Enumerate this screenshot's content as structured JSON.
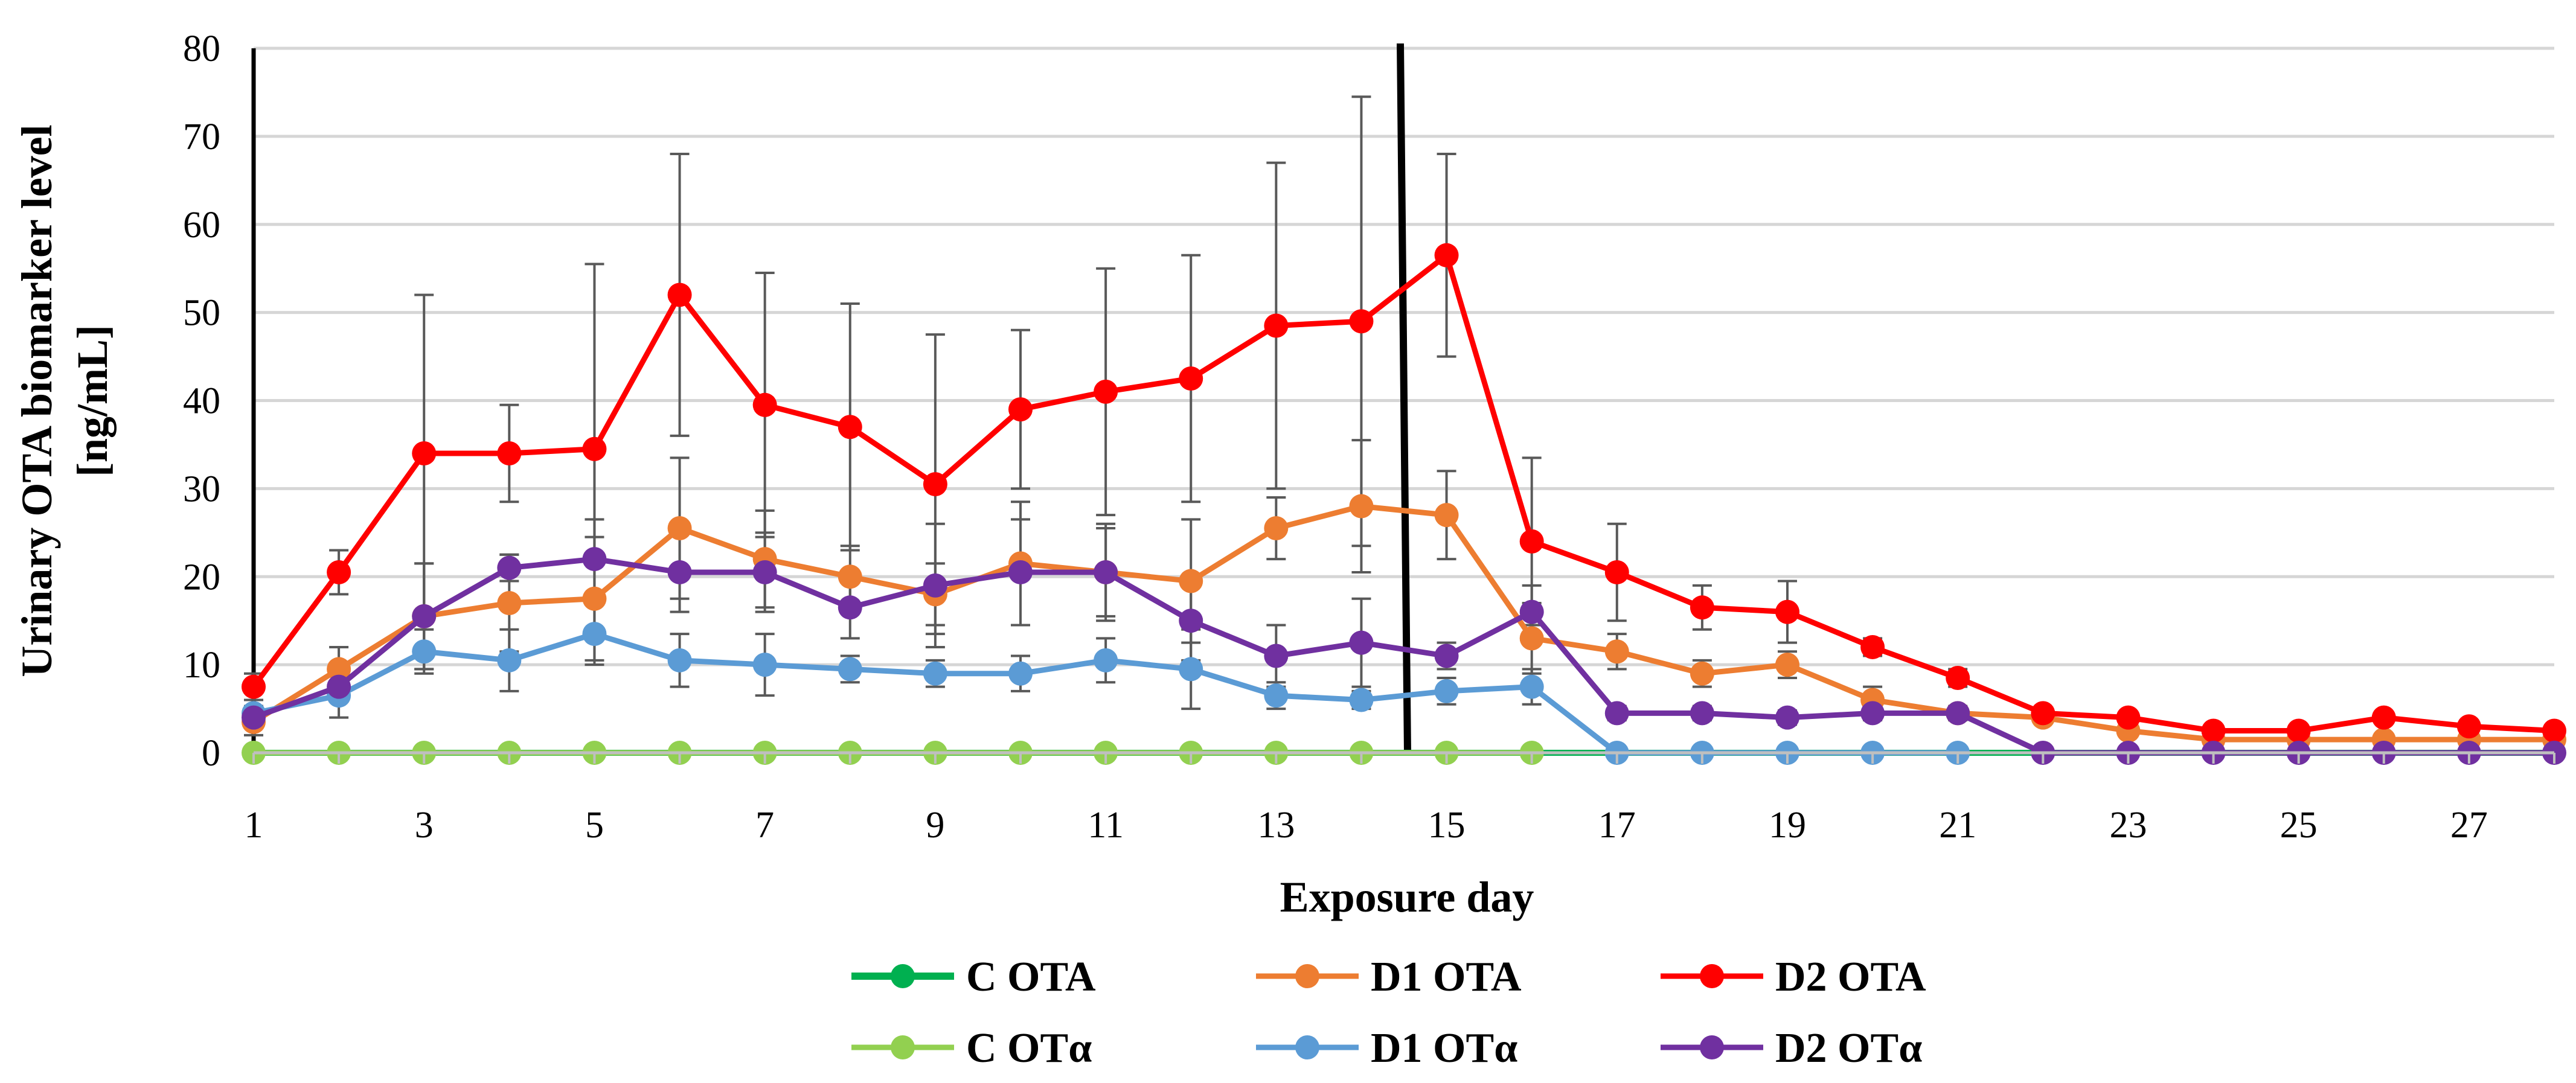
{
  "chart_data": {
    "type": "line",
    "title": "",
    "xlabel": "Exposure day",
    "ylabel": "Urinary OTA biomarker level [ng/mL]",
    "ylabel_lines": [
      "Urinary OTA biomarker level",
      "[ng/mL]"
    ],
    "xlim": [
      1,
      28
    ],
    "ylim": [
      0,
      80
    ],
    "x_ticks": [
      1,
      3,
      5,
      7,
      9,
      11,
      13,
      15,
      17,
      19,
      21,
      23,
      25,
      27
    ],
    "x_tick_labels": [
      "1",
      "3",
      "5",
      "7",
      "9",
      "11",
      "13",
      "15",
      "17",
      "19",
      "21",
      "23",
      "25",
      "27"
    ],
    "y_ticks": [
      0,
      10,
      20,
      30,
      40,
      50,
      60,
      70,
      80
    ],
    "y_tick_labels": [
      "0",
      "10",
      "20",
      "30",
      "40",
      "50",
      "60",
      "70",
      "80"
    ],
    "grid": "horizontal",
    "legend_position": "bottom",
    "vertical_markers": [
      1,
      14.5
    ],
    "series": [
      {
        "name": "C OTA",
        "color": "#00b050",
        "x": [
          1,
          28
        ],
        "values": [
          0,
          0
        ],
        "marker": false
      },
      {
        "name": "D1 OTA",
        "color": "#ed7d31",
        "x": [
          1,
          2,
          3,
          4,
          5,
          6,
          7,
          8,
          9,
          10,
          11,
          12,
          13,
          14,
          15,
          16,
          17,
          18,
          19,
          20,
          21,
          22,
          23,
          24,
          25,
          26,
          27,
          28
        ],
        "values": [
          3.5,
          9.5,
          15.5,
          17,
          17.5,
          25.5,
          22,
          20,
          18,
          21.5,
          20.5,
          19.5,
          25.5,
          28,
          27,
          13,
          11.5,
          9,
          10,
          6,
          4.5,
          4,
          2.5,
          1.5,
          1.5,
          1.5,
          1.5,
          1.5
        ],
        "errors": [
          1.5,
          2.5,
          6,
          5.5,
          7,
          8,
          5.5,
          3.5,
          3.5,
          7,
          5.5,
          7,
          3.5,
          7.5,
          5,
          4,
          2,
          1.5,
          1.5,
          1.5,
          0.5,
          0.5,
          0.3,
          0.3,
          0.3,
          0.3,
          0.3,
          0.3
        ],
        "marker": true
      },
      {
        "name": "D2 OTA",
        "color": "#ff0000",
        "x": [
          1,
          2,
          3,
          4,
          5,
          6,
          7,
          8,
          9,
          10,
          11,
          12,
          13,
          14,
          15,
          16,
          17,
          18,
          19,
          20,
          21,
          22,
          23,
          24,
          25,
          26,
          27,
          28
        ],
        "values": [
          7.5,
          20.5,
          34,
          34,
          34.5,
          52,
          39.5,
          37,
          30.5,
          39,
          41,
          42.5,
          48.5,
          49,
          56.5,
          24,
          20.5,
          16.5,
          16,
          12,
          8.5,
          4.5,
          4,
          2.5,
          2.5,
          4,
          3,
          2.5
        ],
        "errors": [
          1.5,
          2.5,
          18,
          5.5,
          21,
          16,
          15,
          14,
          17,
          9,
          14,
          14,
          18.5,
          25.5,
          11.5,
          9.5,
          5.5,
          2.5,
          3.5,
          1,
          1,
          0.5,
          0.5,
          0.3,
          0.3,
          0.3,
          0.3,
          0.3
        ],
        "marker": true
      },
      {
        "name": "C OTα",
        "color": "#92d050",
        "x": [
          1,
          2,
          3,
          4,
          5,
          6,
          7,
          8,
          9,
          10,
          11,
          12,
          13,
          14,
          15,
          16
        ],
        "values": [
          0,
          0,
          0,
          0,
          0,
          0,
          0,
          0,
          0,
          0,
          0,
          0,
          0,
          0,
          0,
          0
        ],
        "marker": true
      },
      {
        "name": "D1 OTα",
        "color": "#5b9bd5",
        "x": [
          1,
          2,
          3,
          4,
          5,
          6,
          7,
          8,
          9,
          10,
          11,
          12,
          13,
          14,
          15,
          16,
          17,
          18,
          19,
          20,
          21
        ],
        "values": [
          4.5,
          6.5,
          11.5,
          10.5,
          13.5,
          10.5,
          10,
          9.5,
          9,
          9,
          10.5,
          9.5,
          6.5,
          6,
          7,
          7.5,
          0,
          0,
          0,
          0,
          0
        ],
        "errors": [
          0.8,
          2.5,
          2.5,
          3.5,
          3.5,
          3,
          3.5,
          1.5,
          1.5,
          2,
          2.5,
          4.5,
          1.5,
          1,
          1.5,
          2,
          0,
          0,
          0,
          0,
          0
        ],
        "marker": true
      },
      {
        "name": "D2 OTα",
        "color": "#7030a0",
        "x": [
          1,
          2,
          3,
          4,
          5,
          6,
          7,
          8,
          9,
          10,
          11,
          12,
          13,
          14,
          15,
          16,
          17,
          18,
          19,
          20,
          21,
          22,
          23,
          24,
          25,
          26,
          27,
          28
        ],
        "values": [
          4,
          7.5,
          15.5,
          21,
          22,
          20.5,
          20.5,
          16.5,
          19,
          20.5,
          20.5,
          15,
          11,
          12.5,
          11,
          16,
          4.5,
          4.5,
          4,
          4.5,
          4.5,
          0,
          0,
          0,
          0,
          0,
          0,
          0
        ],
        "errors": [
          0.8,
          1.5,
          6,
          1.5,
          4.5,
          4.5,
          4.5,
          3.5,
          7,
          6,
          5,
          4.5,
          3.5,
          5,
          1.5,
          3,
          0.8,
          0.8,
          0.8,
          0.8,
          0.8,
          0,
          0,
          0,
          0,
          0,
          0,
          0
        ],
        "marker": true
      }
    ],
    "legend": [
      [
        "C OTA",
        "D1 OTA",
        "D2 OTA"
      ],
      [
        "C OTα",
        "D1 OTα",
        "D2 OTα"
      ]
    ]
  }
}
